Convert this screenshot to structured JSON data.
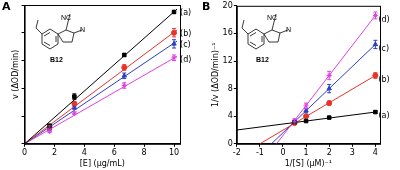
{
  "chart_data": [
    {
      "type": "scatter",
      "title": "A",
      "x_label": "[E] (μg/mL)",
      "y_label": "v (ΔOD/min)",
      "xlim": [
        0,
        10.4
      ],
      "xticks": [
        0,
        2,
        4,
        6,
        8,
        10
      ],
      "ylim": [
        0,
        1
      ],
      "yticks": [
        0,
        0.2,
        0.4,
        0.6,
        0.8,
        1
      ],
      "tick_labels": "x",
      "grid": false,
      "annotations": [
        "NC",
        "N",
        "B12"
      ],
      "series": [
        {
          "name": "(a)",
          "color": "#000000",
          "marker": "rect",
          "x": [
            1.67,
            3.33,
            6.67,
            10
          ],
          "values": [
            0.13,
            0.34,
            0.64,
            0.95
          ],
          "errors": [
            0.01,
            0.02,
            0.01,
            0.01
          ],
          "fit_x": [
            0,
            10.2
          ],
          "fit_values": [
            0,
            0.97
          ]
        },
        {
          "name": "(b)",
          "color": "#e8332a",
          "marker": "circle",
          "x": [
            1.67,
            3.33,
            6.67,
            10
          ],
          "values": [
            0.12,
            0.29,
            0.55,
            0.8
          ],
          "errors": [
            0.01,
            0.01,
            0.02,
            0.03
          ],
          "fit_x": [
            0,
            10.2
          ],
          "fit_values": [
            0,
            0.82
          ]
        },
        {
          "name": "(c)",
          "color": "#2c3fc4",
          "marker": "triangle",
          "x": [
            1.67,
            3.33,
            6.67,
            10
          ],
          "values": [
            0.11,
            0.26,
            0.49,
            0.72
          ],
          "errors": [
            0.01,
            0.01,
            0.02,
            0.03
          ],
          "fit_x": [
            0,
            10.2
          ],
          "fit_values": [
            0,
            0.74
          ]
        },
        {
          "name": "(d)",
          "color": "#e040e0",
          "marker": "star",
          "x": [
            1.67,
            3.33,
            6.67,
            10
          ],
          "values": [
            0.09,
            0.22,
            0.42,
            0.62
          ],
          "errors": [
            0.01,
            0.01,
            0.02,
            0.02
          ],
          "fit_x": [
            0,
            10.2
          ],
          "fit_values": [
            0,
            0.63
          ]
        }
      ]
    },
    {
      "type": "scatter",
      "title": "B",
      "x_label": "1/[S] (μM)⁻¹",
      "y_label": "1/v (ΔOD/min)⁻¹",
      "xlim": [
        -2,
        4.2
      ],
      "xticks": [
        -2,
        -1,
        0,
        1,
        2,
        3,
        4
      ],
      "ylim": [
        0,
        20
      ],
      "yticks": [
        0,
        4,
        8,
        12,
        16,
        20
      ],
      "grid": false,
      "annotations": [
        "NC",
        "N",
        "B12"
      ],
      "series": [
        {
          "name": "(a)",
          "color": "#000000",
          "marker": "rect",
          "x": [
            0.5,
            1,
            2,
            4
          ],
          "values": [
            3.1,
            3.3,
            3.8,
            4.6
          ],
          "errors": [
            0.1,
            0.1,
            0.15,
            0.15
          ],
          "fit_x": [
            -2,
            4
          ],
          "fit_values": [
            2.0,
            4.6
          ]
        },
        {
          "name": "(b)",
          "color": "#e8332a",
          "marker": "circle",
          "x": [
            0.5,
            1,
            2,
            4
          ],
          "values": [
            3.0,
            4.0,
            5.9,
            9.9
          ],
          "errors": [
            0.15,
            0.2,
            0.3,
            0.4
          ],
          "fit_x": [
            -1.0,
            4
          ],
          "fit_values": [
            0,
            9.9
          ]
        },
        {
          "name": "(c)",
          "color": "#2c3fc4",
          "marker": "triangle",
          "x": [
            0.5,
            1,
            2,
            4
          ],
          "values": [
            3.2,
            4.8,
            8.0,
            14.4
          ],
          "errors": [
            0.2,
            0.3,
            0.6,
            0.6
          ],
          "fit_x": [
            -0.5,
            4
          ],
          "fit_values": [
            0,
            14.4
          ]
        },
        {
          "name": "(d)",
          "color": "#e040e0",
          "marker": "star",
          "x": [
            0.5,
            1,
            2,
            4
          ],
          "values": [
            3.4,
            5.5,
            9.9,
            18.6
          ],
          "errors": [
            0.2,
            0.4,
            0.6,
            0.5
          ],
          "fit_x": [
            -0.28,
            4
          ],
          "fit_values": [
            0,
            18.6
          ]
        }
      ]
    }
  ]
}
